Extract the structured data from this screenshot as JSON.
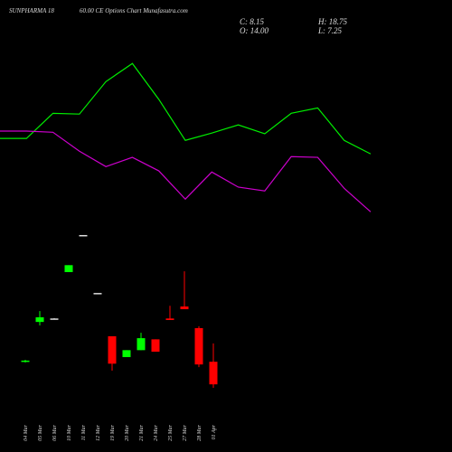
{
  "chart_data": [
    {
      "type": "candlestick",
      "title": "SUNPHARMA 18",
      "subtitle": "60.00  CE Options Chart Munafasutra.com",
      "annotations": [
        "C: 8.15",
        "H: 18.75",
        "O: 14.00",
        "L: 7.25"
      ],
      "categories": [
        "04 Mar",
        "05 Mar",
        "06 Mar",
        "10 Mar",
        "11 Mar",
        "12 Mar",
        "19 Mar",
        "20 Mar",
        "21 Mar",
        "24 Mar",
        "25 Mar",
        "27 Mar",
        "28 Mar",
        "01 Apr"
      ],
      "open": [
        14.0,
        24.3,
        25.2,
        37.2,
        46.8,
        31.8,
        20.6,
        15.2,
        17.0,
        19.8,
        25.2,
        28.3,
        22.7,
        14.0
      ],
      "high": [
        14.5,
        27.1,
        25.3,
        39.0,
        46.8,
        31.8,
        20.6,
        17.0,
        21.5,
        19.8,
        28.5,
        37.4,
        23.2,
        18.75
      ],
      "low": [
        13.8,
        23.4,
        25.1,
        37.2,
        46.8,
        31.8,
        11.7,
        15.2,
        17.0,
        16.6,
        24.8,
        27.6,
        12.6,
        7.25
      ],
      "close": [
        14.3,
        25.5,
        25.2,
        39.0,
        46.8,
        31.8,
        13.5,
        17.0,
        20.1,
        16.6,
        24.8,
        27.6,
        13.3,
        8.15
      ],
      "up_color": "#00ff00",
      "down_color": "#ff0000",
      "flat_color": "#dddddd",
      "ylim": [
        0,
        100
      ]
    },
    {
      "type": "line",
      "series": [
        {
          "color": "#00ee00",
          "values": [
            71.8,
            71.8,
            78.3,
            78.1,
            86.5,
            91.2,
            81.9,
            71.3,
            73.2,
            75.3,
            73.0,
            78.3,
            79.7,
            71.3,
            67.8
          ]
        },
        {
          "color": "#cc00cc",
          "values": [
            73.7,
            73.7,
            73.4,
            68.5,
            64.5,
            66.9,
            63.4,
            56.1,
            63.1,
            59.2,
            58.2,
            67.1,
            66.9,
            58.9,
            52.8
          ]
        }
      ],
      "ylim": [
        0,
        100
      ]
    }
  ]
}
